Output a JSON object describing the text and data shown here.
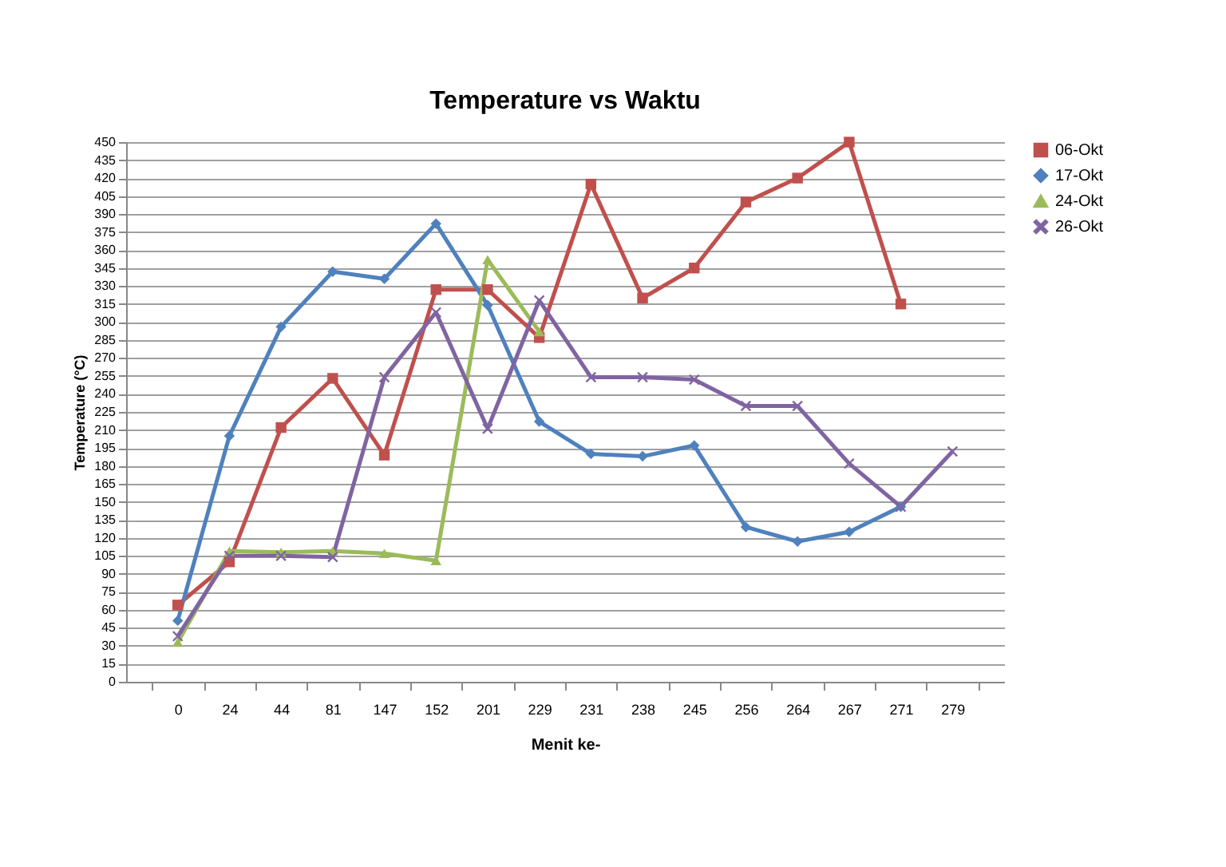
{
  "chart_data": {
    "type": "line",
    "title": "Temperature vs Waktu",
    "xlabel": "Menit ke-",
    "ylabel": "Temperature (°C)",
    "categories": [
      "0",
      "24",
      "44",
      "81",
      "147",
      "152",
      "201",
      "229",
      "231",
      "238",
      "245",
      "256",
      "264",
      "267",
      "271",
      "279"
    ],
    "ylim": [
      0,
      450
    ],
    "yticks": [
      0,
      15,
      30,
      45,
      60,
      75,
      90,
      105,
      120,
      135,
      150,
      165,
      180,
      195,
      210,
      225,
      240,
      255,
      270,
      285,
      300,
      315,
      330,
      345,
      360,
      375,
      390,
      405,
      420,
      435,
      450
    ],
    "grid": "y",
    "legend": "right",
    "series": [
      {
        "name": "06-Okt",
        "color": "#c0504d",
        "marker": "square",
        "values": [
          64,
          100,
          212,
          253,
          189,
          327,
          327,
          287,
          415,
          320,
          345,
          400,
          420,
          450,
          315,
          null
        ]
      },
      {
        "name": "17-Okt",
        "color": "#4f81bd",
        "marker": "diamond",
        "values": [
          51,
          205,
          296,
          342,
          336,
          382,
          314,
          217,
          190,
          188,
          197,
          129,
          117,
          125,
          146,
          null
        ]
      },
      {
        "name": "24-Okt",
        "color": "#9bbb59",
        "marker": "triangle",
        "values": [
          33,
          109,
          108,
          109,
          107,
          101,
          352,
          292,
          null,
          null,
          null,
          null,
          null,
          null,
          null,
          null
        ]
      },
      {
        "name": "26-Okt",
        "color": "#8064a2",
        "marker": "cross",
        "values": [
          38,
          105,
          105,
          104,
          254,
          308,
          211,
          318,
          254,
          254,
          252,
          230,
          230,
          182,
          146,
          192
        ]
      }
    ]
  }
}
